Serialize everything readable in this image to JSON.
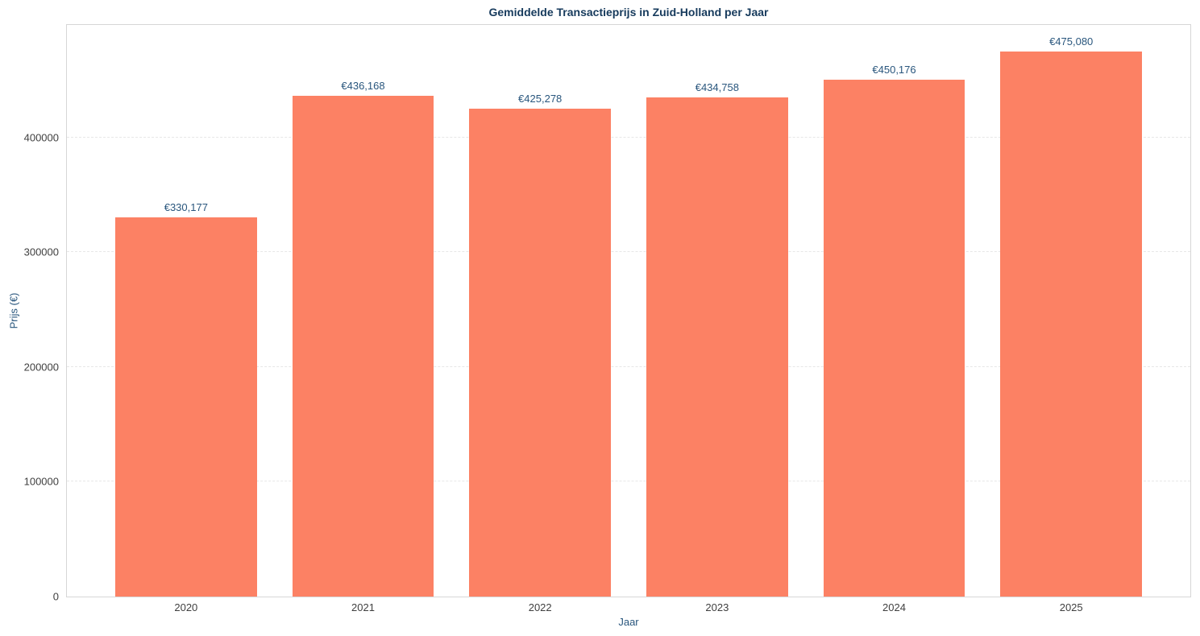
{
  "title": "Gemiddelde Transactieprijs in Zuid-Holland per Jaar",
  "colors": {
    "bar": "#fc8164",
    "title_text": "#163a5c",
    "axis_label_text": "#29567d",
    "tick_text": "#3f3f3f",
    "gridline": "#e7e7e7",
    "plot_border": "#d6d6d6",
    "background": "#ffffff"
  },
  "chart_data": {
    "type": "bar",
    "title": "Gemiddelde Transactieprijs in Zuid-Holland per Jaar",
    "xlabel": "Jaar",
    "ylabel": "Prijs (€)",
    "categories": [
      "2020",
      "2021",
      "2022",
      "2023",
      "2024",
      "2025"
    ],
    "values": [
      330177,
      436168,
      425278,
      434758,
      450176,
      475080
    ],
    "value_labels": [
      "€330,177",
      "€436,168",
      "€425,278",
      "€434,758",
      "€450,176",
      "€475,080"
    ],
    "yticks": [
      0,
      100000,
      200000,
      300000,
      400000
    ],
    "ytick_labels": [
      "0",
      "100000",
      "200000",
      "300000",
      "400000"
    ],
    "ylim": [
      0,
      498000
    ],
    "grid": "horizontal-dashed",
    "legend": "none",
    "bar_color": "#fc8164"
  }
}
